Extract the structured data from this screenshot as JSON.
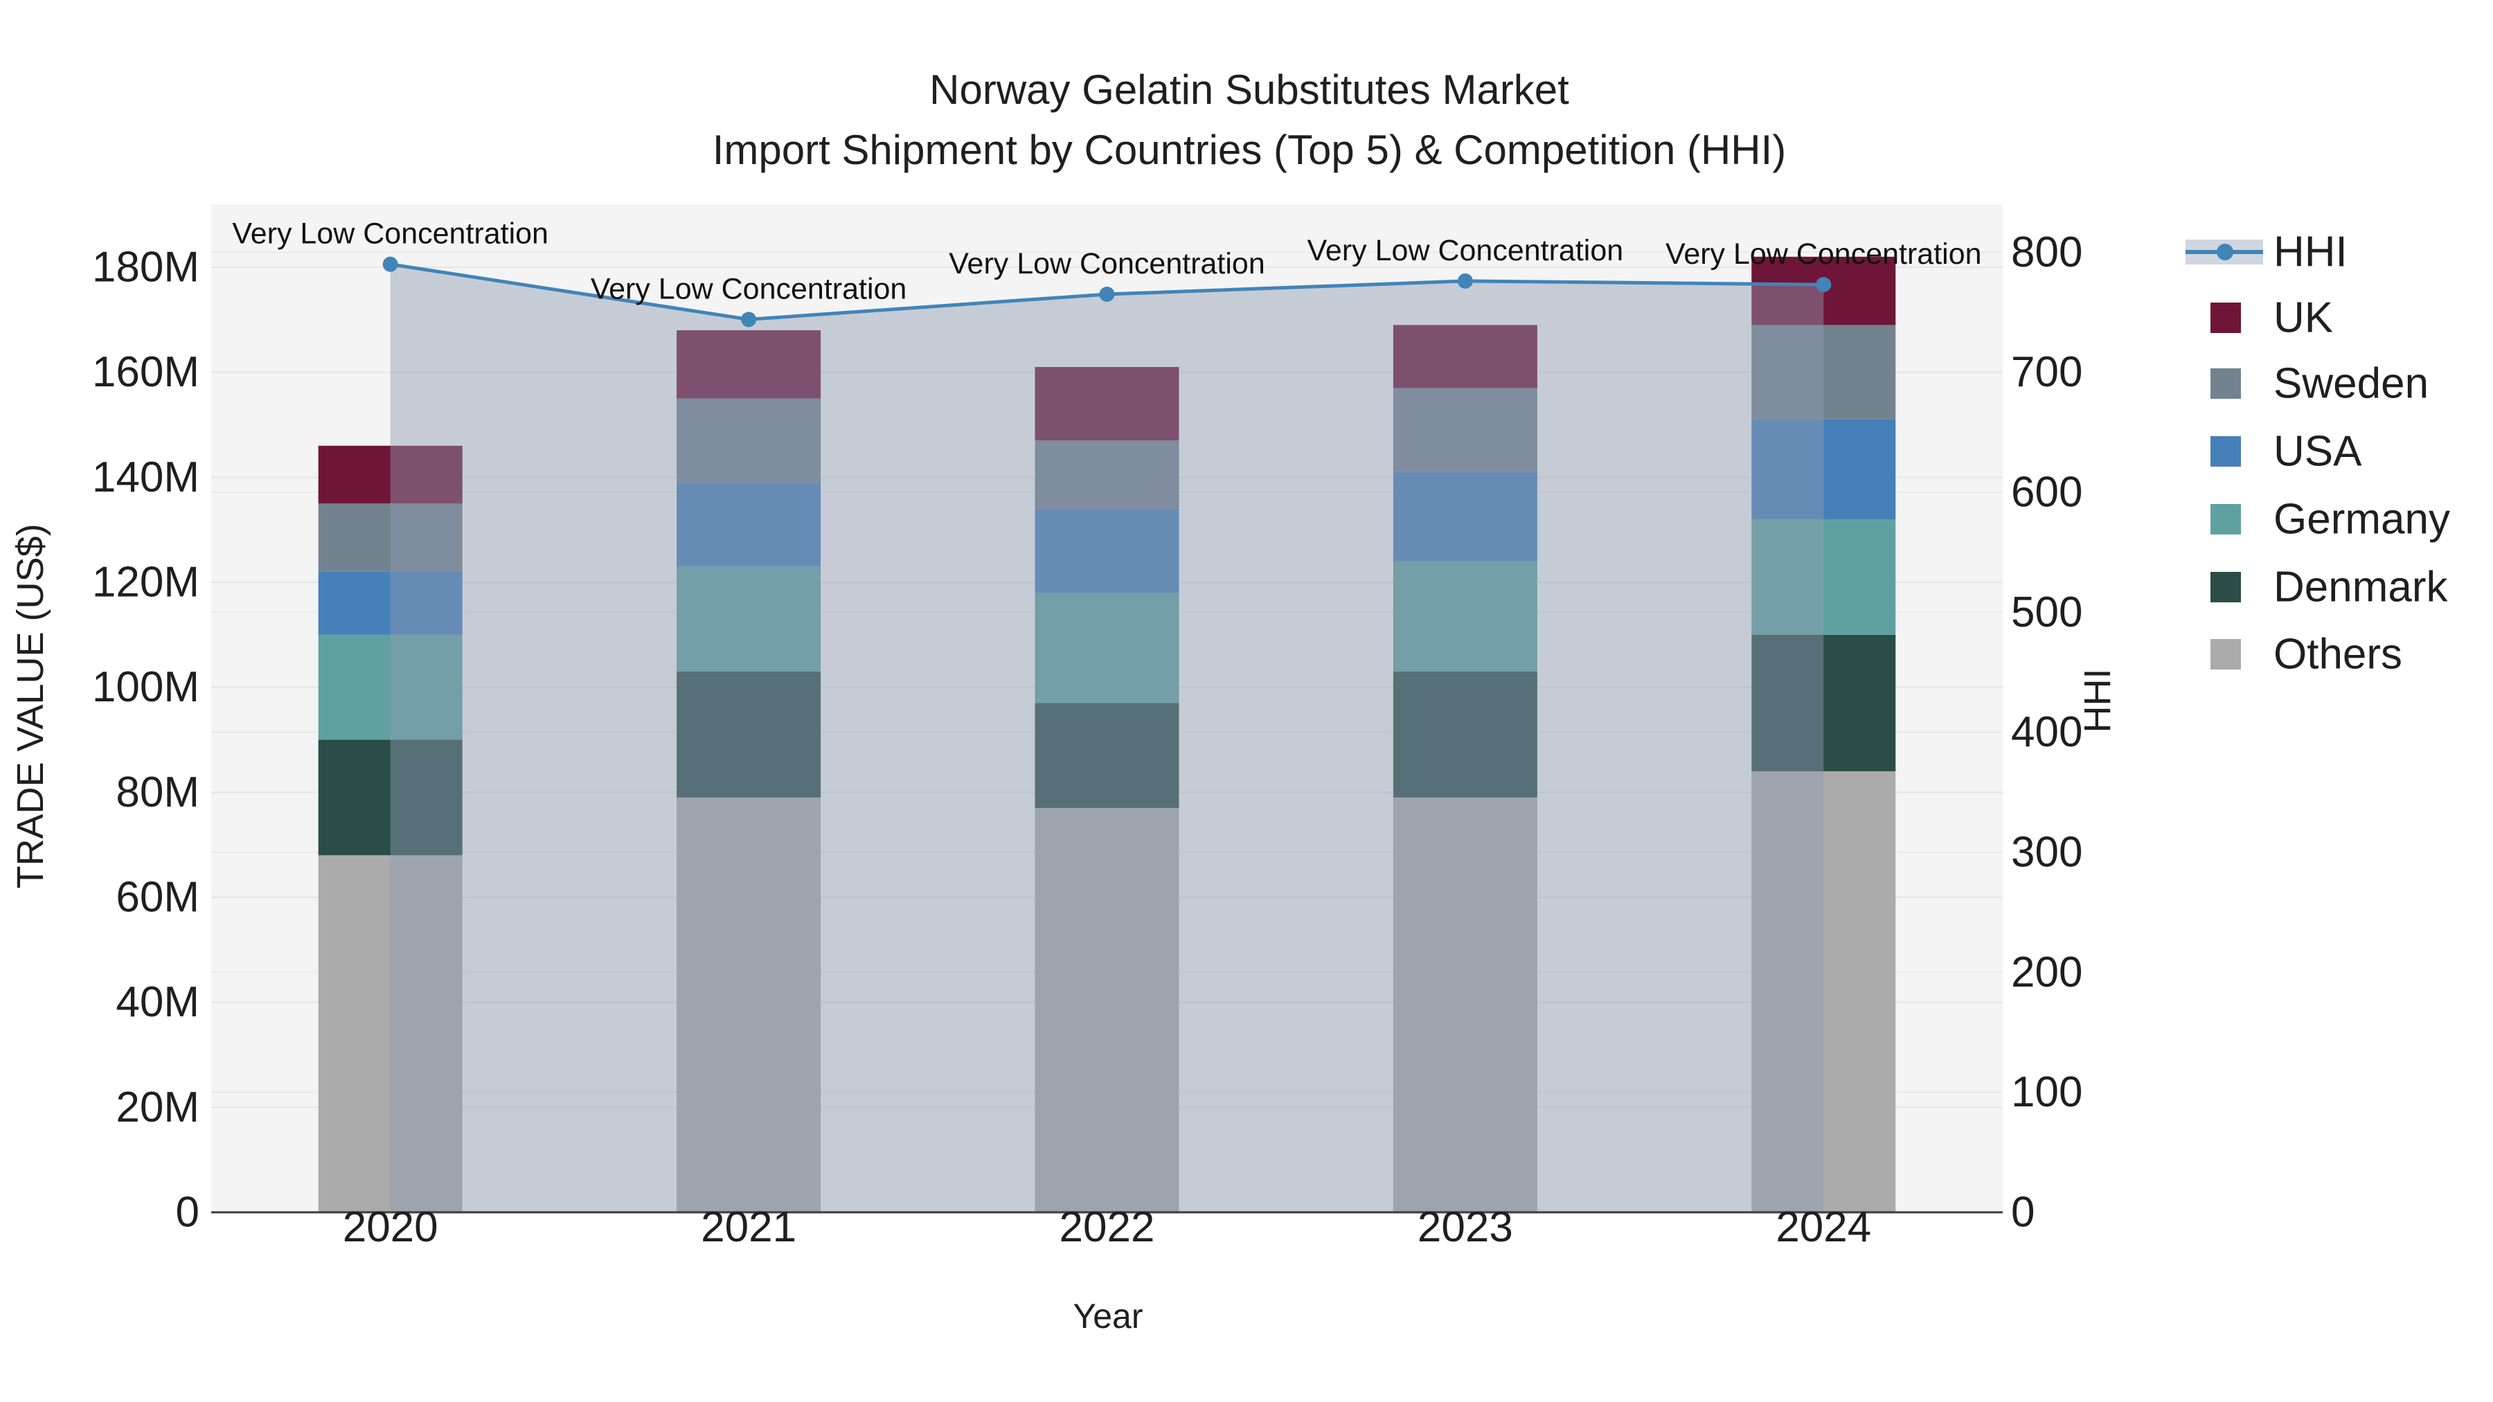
{
  "title": {
    "line1": "Norway Gelatin Substitutes Market",
    "line2": "Import Shipment by Countries (Top 5) & Competition (HHI)"
  },
  "axes": {
    "left": {
      "title": "TRADE VALUE (US$)",
      "tick_labels": [
        "0",
        "20M",
        "40M",
        "60M",
        "80M",
        "100M",
        "120M",
        "140M",
        "160M",
        "180M"
      ],
      "tick_values": [
        0,
        20,
        40,
        60,
        80,
        100,
        120,
        140,
        160,
        180
      ],
      "range": [
        0,
        192
      ]
    },
    "right": {
      "title": "HHI",
      "tick_labels": [
        "0",
        "100",
        "200",
        "300",
        "400",
        "500",
        "600",
        "700",
        "800"
      ],
      "tick_values": [
        0,
        100,
        200,
        300,
        400,
        500,
        600,
        700,
        800
      ],
      "range": [
        0,
        840
      ]
    },
    "bottom": {
      "title": "Year",
      "categories": [
        "2020",
        "2021",
        "2022",
        "2023",
        "2024"
      ]
    }
  },
  "legend": {
    "items": [
      {
        "label": "HHI",
        "type": "line",
        "color": "#4284B8"
      },
      {
        "label": "UK",
        "type": "swatch",
        "color": "#6F1537"
      },
      {
        "label": "Sweden",
        "type": "swatch",
        "color": "#73828F"
      },
      {
        "label": "USA",
        "type": "swatch",
        "color": "#4580B8"
      },
      {
        "label": "Germany",
        "type": "swatch",
        "color": "#5FA1A1"
      },
      {
        "label": "Denmark",
        "type": "swatch",
        "color": "#2B4D48"
      },
      {
        "label": "Others",
        "type": "swatch",
        "color": "#ABABAB"
      }
    ]
  },
  "chart_data": {
    "type": "bar",
    "subtype": "stacked-bars-with-line",
    "categories": [
      "2020",
      "2021",
      "2022",
      "2023",
      "2024"
    ],
    "bar_value_unit": "M US$ (trade value, left axis)",
    "series": [
      {
        "name": "Others",
        "color": "#ABABAB",
        "values": [
          68,
          79,
          77,
          79,
          84
        ]
      },
      {
        "name": "Denmark",
        "color": "#2B4D48",
        "values": [
          22,
          24,
          20,
          24,
          26
        ]
      },
      {
        "name": "Germany",
        "color": "#5FA1A1",
        "values": [
          20,
          20,
          21,
          21,
          22
        ]
      },
      {
        "name": "USA",
        "color": "#4580B8",
        "values": [
          12,
          16,
          16,
          17,
          19
        ]
      },
      {
        "name": "Sweden",
        "color": "#73828F",
        "values": [
          13,
          16,
          13,
          16,
          18
        ]
      },
      {
        "name": "UK",
        "color": "#6F1537",
        "values": [
          11,
          13,
          14,
          12,
          13
        ]
      }
    ],
    "bar_totals": [
      146,
      168,
      161,
      169,
      182
    ],
    "line": {
      "name": "HHI",
      "axis": "right",
      "color": "#4284B8",
      "area_fill": "rgba(141,155,178,0.45)",
      "values": [
        790,
        744,
        765,
        776,
        773
      ]
    },
    "annotations": [
      {
        "category": "2020",
        "text": "Very Low Concentration"
      },
      {
        "category": "2021",
        "text": "Very Low Concentration"
      },
      {
        "category": "2022",
        "text": "Very Low Concentration"
      },
      {
        "category": "2023",
        "text": "Very Low Concentration"
      },
      {
        "category": "2024",
        "text": "Very Low Concentration"
      }
    ],
    "layout_hints": {
      "plot_background": "#F4F4F4",
      "grid_color": "#E4E4E4",
      "grid": "on",
      "legend_position": "right",
      "left_axis_range": [
        0,
        192
      ],
      "right_axis_range": [
        0,
        840
      ]
    }
  }
}
